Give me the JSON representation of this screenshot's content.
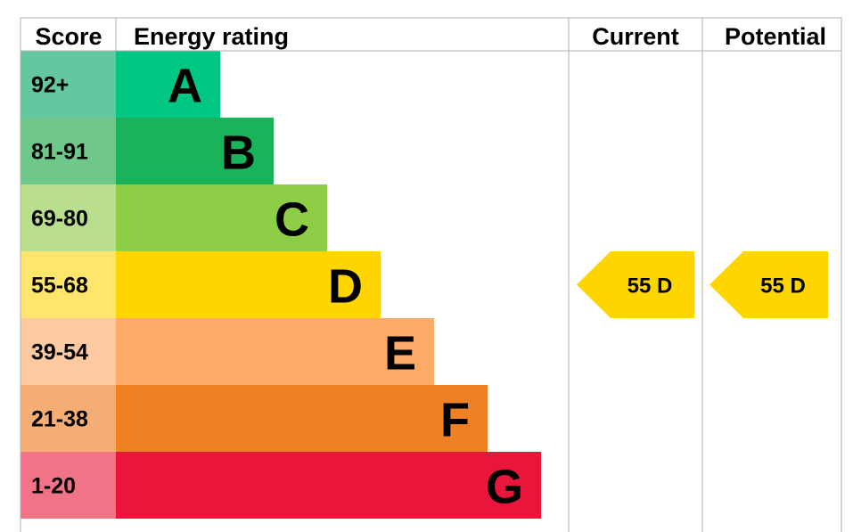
{
  "chart_data": {
    "type": "bar",
    "title": "",
    "headers": {
      "score": "Score",
      "rating": "Energy rating",
      "current": "Current",
      "potential": "Potential"
    },
    "bands": [
      {
        "letter": "A",
        "range": "92+",
        "color": "#00c781",
        "score_color": "#63c8a0"
      },
      {
        "letter": "B",
        "range": "81-91",
        "color": "#19b459",
        "score_color": "#70c78a"
      },
      {
        "letter": "C",
        "range": "69-80",
        "color": "#8dce46",
        "score_color": "#b8de8e"
      },
      {
        "letter": "D",
        "range": "55-68",
        "color": "#ffd500",
        "score_color": "#ffe56b"
      },
      {
        "letter": "E",
        "range": "39-54",
        "color": "#fcaa65",
        "score_color": "#fdc9a0"
      },
      {
        "letter": "F",
        "range": "21-38",
        "color": "#ef8023",
        "score_color": "#f3ad75"
      },
      {
        "letter": "G",
        "range": "1-20",
        "color": "#e9153b",
        "score_color": "#f07387"
      }
    ],
    "current": {
      "score": 55,
      "band": "D",
      "label": "55  D",
      "color": "#ffd500"
    },
    "potential": {
      "score": 55,
      "band": "D",
      "label": "55  D",
      "color": "#ffd500"
    }
  }
}
